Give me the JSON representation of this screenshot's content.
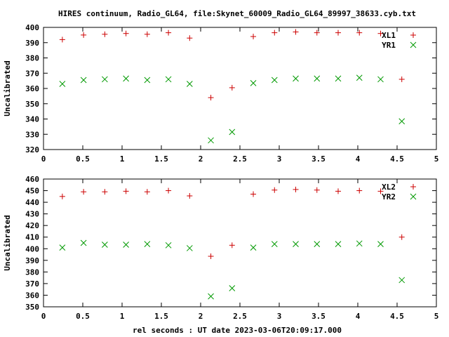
{
  "chart_title": "HIRES continuum, Radio_GL64, file:Skynet_60009_Radio_GL64_89997_38633.cyb.txt",
  "xlabel": "rel seconds : UT date 2023-03-06T20:09:17.000",
  "colors": {
    "red": "#cc0000",
    "green": "#009900"
  },
  "chart_data": [
    {
      "type": "scatter",
      "ylabel": "Uncalibrated",
      "xlim": [
        0,
        5
      ],
      "ylim": [
        320,
        400
      ],
      "xticks": [
        "0",
        "0.5",
        "1",
        "1.5",
        "2",
        "2.5",
        "3",
        "3.5",
        "4",
        "4.5",
        "5"
      ],
      "yticks": [
        "320",
        "330",
        "340",
        "350",
        "360",
        "370",
        "380",
        "390",
        "400"
      ],
      "legend_position": "top-right",
      "series": [
        {
          "name": "XL1",
          "marker": "plus",
          "color": "#cc0000",
          "x": [
            0.24,
            0.51,
            0.78,
            1.05,
            1.32,
            1.59,
            1.86,
            2.13,
            2.4,
            2.67,
            2.94,
            3.21,
            3.48,
            3.75,
            4.02,
            4.29,
            4.56
          ],
          "y": [
            392,
            395,
            395.5,
            396,
            395.5,
            396.5,
            393,
            354,
            360.5,
            394,
            396.5,
            397,
            396.5,
            396.5,
            396.5,
            396,
            366
          ]
        },
        {
          "name": "YR1",
          "marker": "cross",
          "color": "#009900",
          "x": [
            0.24,
            0.51,
            0.78,
            1.05,
            1.32,
            1.59,
            1.86,
            2.13,
            2.4,
            2.67,
            2.94,
            3.21,
            3.48,
            3.75,
            4.02,
            4.29,
            4.56
          ],
          "y": [
            363,
            365.5,
            366,
            366.5,
            365.5,
            366,
            363,
            326,
            331.5,
            363.5,
            365.5,
            366.5,
            366.5,
            366.5,
            367,
            366,
            338.5
          ]
        }
      ]
    },
    {
      "type": "scatter",
      "ylabel": "Uncalibrated",
      "xlim": [
        0,
        5
      ],
      "ylim": [
        350,
        460
      ],
      "xticks": [
        "0",
        "0.5",
        "1",
        "1.5",
        "2",
        "2.5",
        "3",
        "3.5",
        "4",
        "4.5",
        "5"
      ],
      "yticks": [
        "350",
        "360",
        "370",
        "380",
        "390",
        "400",
        "410",
        "420",
        "430",
        "440",
        "450",
        "460"
      ],
      "legend_position": "top-right",
      "series": [
        {
          "name": "XL2",
          "marker": "plus",
          "color": "#cc0000",
          "x": [
            0.24,
            0.51,
            0.78,
            1.05,
            1.32,
            1.59,
            1.86,
            2.13,
            2.4,
            2.67,
            2.94,
            3.21,
            3.48,
            3.75,
            4.02,
            4.29,
            4.56
          ],
          "y": [
            445,
            449,
            449,
            449.5,
            449,
            450,
            445.5,
            393.5,
            403,
            447,
            450.5,
            451,
            450.5,
            449.5,
            450,
            449.5,
            410
          ]
        },
        {
          "name": "YR2",
          "marker": "cross",
          "color": "#009900",
          "x": [
            0.24,
            0.51,
            0.78,
            1.05,
            1.32,
            1.59,
            1.86,
            2.13,
            2.4,
            2.67,
            2.94,
            3.21,
            3.48,
            3.75,
            4.02,
            4.29,
            4.56
          ],
          "y": [
            401,
            405,
            403.5,
            403.5,
            404,
            403,
            400.5,
            359,
            366,
            401,
            404,
            404,
            404,
            404,
            404.5,
            404,
            373
          ]
        }
      ]
    }
  ]
}
